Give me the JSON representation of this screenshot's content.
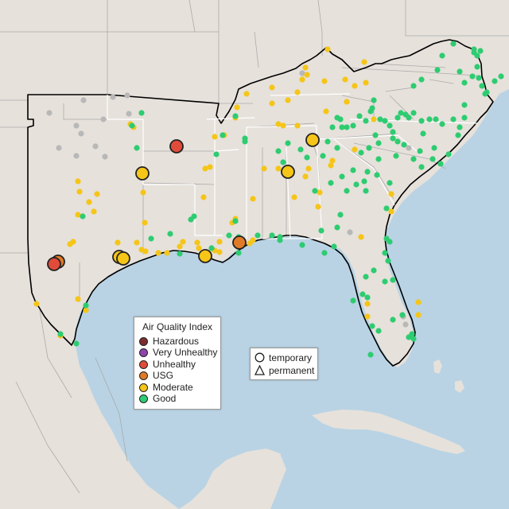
{
  "legend": {
    "title": "Air Quality Index",
    "categories": [
      {
        "label": "Hazardous",
        "color": "#7e2d2d"
      },
      {
        "label": "Very Unhealthy",
        "color": "#8e44ad"
      },
      {
        "label": "Unhealthy",
        "color": "#e04b3a"
      },
      {
        "label": "USG",
        "color": "#e07a26"
      },
      {
        "label": "Moderate",
        "color": "#f5c518"
      },
      {
        "label": "Good",
        "color": "#2ecc71"
      }
    ]
  },
  "monitor_type_legend": {
    "temporary": "temporary",
    "permanent": "permanent"
  },
  "colors": {
    "water": "#b9d3e4",
    "land": "#e6e1db",
    "no_data": "#b8b8b8",
    "region_outline": "#000000"
  }
}
